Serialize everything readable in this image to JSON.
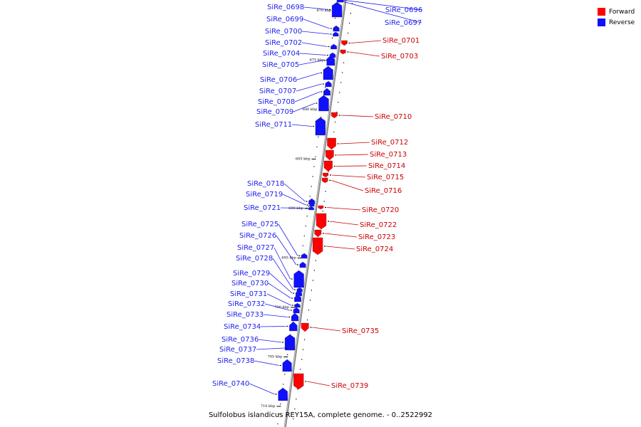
{
  "caption": "Sulfolobus islandicus REY15A, complete genome. - 0..2522992",
  "colors": {
    "forward": "#ff0000",
    "reverse": "#1010ff",
    "forward_line": "#cc0000",
    "reverse_line": "#2020ee",
    "axis": "#888888"
  },
  "legend": [
    {
      "label": "Forward",
      "color": "#ff0000"
    },
    {
      "label": "Reverse",
      "color": "#1010ff"
    }
  ],
  "kbp_marks": [
    {
      "text": "670 kbp",
      "kbp": 670
    },
    {
      "text": "675 kbp",
      "kbp": 675
    },
    {
      "text": "680 kbp",
      "kbp": 680
    },
    {
      "text": "685 kbp",
      "kbp": 685
    },
    {
      "text": "690 kbp",
      "kbp": 690
    },
    {
      "text": "695 kbp",
      "kbp": 695
    },
    {
      "text": "700 kbp",
      "kbp": 700
    },
    {
      "text": "705 kbp",
      "kbp": 705
    },
    {
      "text": "710 kbp",
      "kbp": 710
    }
  ],
  "genes": [
    {
      "name": "SiRe_0696",
      "strand": "reverse"
    },
    {
      "name": "SiRe_0697",
      "strand": "reverse"
    },
    {
      "name": "SiRe_0698",
      "strand": "reverse"
    },
    {
      "name": "SiRe_0699",
      "strand": "reverse"
    },
    {
      "name": "SiRe_0700",
      "strand": "reverse"
    },
    {
      "name": "SiRe_0701",
      "strand": "forward"
    },
    {
      "name": "SiRe_0702",
      "strand": "reverse"
    },
    {
      "name": "SiRe_0703",
      "strand": "forward"
    },
    {
      "name": "SiRe_0704",
      "strand": "reverse"
    },
    {
      "name": "SiRe_0705",
      "strand": "reverse"
    },
    {
      "name": "SiRe_0706",
      "strand": "reverse"
    },
    {
      "name": "SiRe_0707",
      "strand": "reverse"
    },
    {
      "name": "SiRe_0708",
      "strand": "reverse"
    },
    {
      "name": "SiRe_0709",
      "strand": "reverse"
    },
    {
      "name": "SiRe_0710",
      "strand": "forward"
    },
    {
      "name": "SiRe_0711",
      "strand": "reverse"
    },
    {
      "name": "SiRe_0712",
      "strand": "forward"
    },
    {
      "name": "SiRe_0713",
      "strand": "forward"
    },
    {
      "name": "SiRe_0714",
      "strand": "forward"
    },
    {
      "name": "SiRe_0715",
      "strand": "forward"
    },
    {
      "name": "SiRe_0716",
      "strand": "forward"
    },
    {
      "name": "SiRe_0718",
      "strand": "reverse"
    },
    {
      "name": "SiRe_0719",
      "strand": "reverse"
    },
    {
      "name": "SiRe_0720",
      "strand": "forward"
    },
    {
      "name": "SiRe_0721",
      "strand": "reverse"
    },
    {
      "name": "SiRe_0722",
      "strand": "forward"
    },
    {
      "name": "SiRe_0723",
      "strand": "forward"
    },
    {
      "name": "SiRe_0724",
      "strand": "forward"
    },
    {
      "name": "SiRe_0725",
      "strand": "reverse"
    },
    {
      "name": "SiRe_0726",
      "strand": "reverse"
    },
    {
      "name": "SiRe_0727",
      "strand": "reverse"
    },
    {
      "name": "SiRe_0728",
      "strand": "reverse"
    },
    {
      "name": "SiRe_0729",
      "strand": "reverse"
    },
    {
      "name": "SiRe_0730",
      "strand": "reverse"
    },
    {
      "name": "SiRe_0731",
      "strand": "reverse"
    },
    {
      "name": "SiRe_0732",
      "strand": "reverse"
    },
    {
      "name": "SiRe_0733",
      "strand": "reverse"
    },
    {
      "name": "SiRe_0734",
      "strand": "reverse"
    },
    {
      "name": "SiRe_0735",
      "strand": "forward"
    },
    {
      "name": "SiRe_0736",
      "strand": "reverse"
    },
    {
      "name": "SiRe_0737",
      "strand": "reverse"
    },
    {
      "name": "SiRe_0738",
      "strand": "reverse"
    },
    {
      "name": "SiRe_0739",
      "strand": "forward"
    },
    {
      "name": "SiRe_0740",
      "strand": "reverse"
    }
  ]
}
